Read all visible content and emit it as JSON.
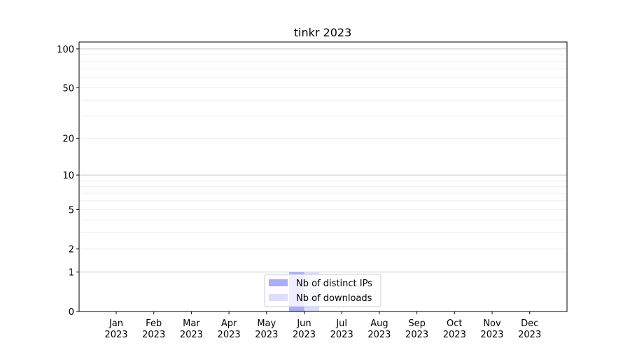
{
  "chart_data": {
    "type": "bar",
    "title": "tinkr 2023",
    "xlabel": "",
    "ylabel": "",
    "categories": [
      "Jan\n2023",
      "Feb\n2023",
      "Mar\n2023",
      "Apr\n2023",
      "May\n2023",
      "Jun\n2023",
      "Jul\n2023",
      "Aug\n2023",
      "Sep\n2023",
      "Oct\n2023",
      "Nov\n2023",
      "Dec\n2023"
    ],
    "series": [
      {
        "name": "Nb of distinct IPs",
        "color": "#aaaaff",
        "values": [
          0,
          0,
          0,
          0,
          0,
          1,
          0,
          0,
          0,
          0,
          0,
          0
        ]
      },
      {
        "name": "Nb of downloads",
        "color": "#ddddff",
        "values": [
          0,
          0,
          0,
          0,
          0,
          1,
          0,
          0,
          0,
          0,
          0,
          0
        ]
      }
    ],
    "yscale": "log10(1+y)",
    "ylim": [
      0,
      113
    ],
    "yticks": [
      0,
      1,
      2,
      5,
      10,
      20,
      50,
      100
    ],
    "ytick_labels": [
      "0",
      "1",
      "2",
      "5",
      "10",
      "20",
      "50",
      "100"
    ],
    "grid": true,
    "legend_position": "bottom-center"
  }
}
